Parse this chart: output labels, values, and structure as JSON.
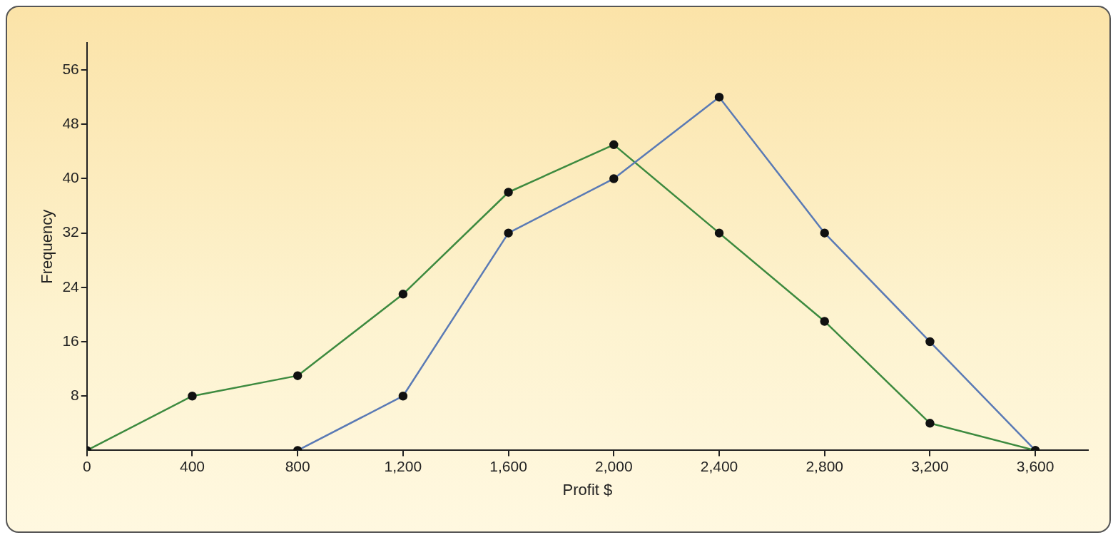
{
  "chart_data": {
    "type": "line",
    "xlabel": "Profit $",
    "ylabel": "Frequency",
    "xlim": [
      0,
      3800
    ],
    "xticks": [
      {
        "value": 0,
        "label": "0"
      },
      {
        "value": 400,
        "label": "400"
      },
      {
        "value": 800,
        "label": "800"
      },
      {
        "value": 1200,
        "label": "1,200"
      },
      {
        "value": 1600,
        "label": "1,600"
      },
      {
        "value": 2000,
        "label": "2,000"
      },
      {
        "value": 2400,
        "label": "2,400"
      },
      {
        "value": 2800,
        "label": "2,800"
      },
      {
        "value": 3200,
        "label": "3,200"
      },
      {
        "value": 3600,
        "label": "3,600"
      }
    ],
    "ylim": [
      0,
      60
    ],
    "yticks": [
      8,
      16,
      24,
      32,
      40,
      48,
      56
    ],
    "series": [
      {
        "color": "#5a7ab5",
        "x": [
          800,
          1200,
          1600,
          2000,
          2400,
          2800,
          3200,
          3600
        ],
        "values": [
          0,
          8,
          32,
          40,
          52,
          32,
          16,
          0
        ]
      },
      {
        "color": "#3d8a3f",
        "x": [
          0,
          400,
          800,
          1200,
          1600,
          2000,
          2400,
          2800,
          3200,
          3600
        ],
        "values": [
          0,
          8,
          11,
          23,
          38,
          45,
          32,
          19,
          4,
          0
        ]
      }
    ],
    "marker": "circle",
    "line_style": "solid",
    "grid": false
  }
}
